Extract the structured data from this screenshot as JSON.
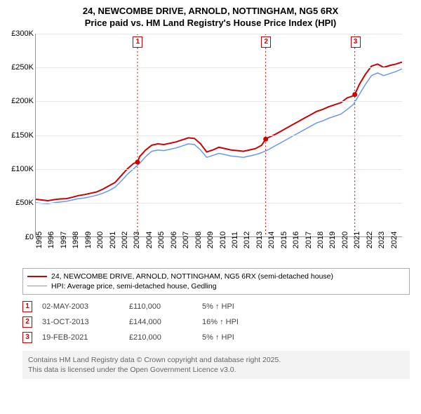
{
  "title": {
    "line1": "24, NEWCOMBE DRIVE, ARNOLD, NOTTINGHAM, NG5 6RX",
    "line2": "Price paid vs. HM Land Registry's House Price Index (HPI)"
  },
  "chart": {
    "type": "line",
    "background_color": "#ffffff",
    "grid_color": "#e8e8e8",
    "axis_color": "#999999",
    "tick_fontsize": 11,
    "y": {
      "min": 0,
      "max": 300000,
      "step": 50000,
      "labels": [
        "£0",
        "£50K",
        "£100K",
        "£150K",
        "£200K",
        "£250K",
        "£300K"
      ]
    },
    "x": {
      "min": 1995,
      "max": 2025,
      "step": 1,
      "labels": [
        "1995",
        "1996",
        "1997",
        "1998",
        "1999",
        "2000",
        "2001",
        "2002",
        "2003",
        "2004",
        "2005",
        "2006",
        "2007",
        "2008",
        "2009",
        "2010",
        "2011",
        "2012",
        "2013",
        "2014",
        "2015",
        "2016",
        "2017",
        "2018",
        "2019",
        "2020",
        "2021",
        "2022",
        "2023",
        "2024"
      ]
    },
    "series": [
      {
        "id": "price_paid",
        "label": "24, NEWCOMBE DRIVE, ARNOLD, NOTTINGHAM, NG5 6RX (semi-detached house)",
        "color": "#cc0000",
        "line_width": 2,
        "points": [
          [
            1995.0,
            55000
          ],
          [
            1995.5,
            54000
          ],
          [
            1996.0,
            53000
          ],
          [
            1996.5,
            54500
          ],
          [
            1997.0,
            55500
          ],
          [
            1997.5,
            56000
          ],
          [
            1998.0,
            58000
          ],
          [
            1998.5,
            60500
          ],
          [
            1999.0,
            62000
          ],
          [
            1999.5,
            64000
          ],
          [
            2000.0,
            66000
          ],
          [
            2000.5,
            70000
          ],
          [
            2001.0,
            75000
          ],
          [
            2001.5,
            80000
          ],
          [
            2002.0,
            90000
          ],
          [
            2002.5,
            100000
          ],
          [
            2003.0,
            108000
          ],
          [
            2003.33,
            110000
          ],
          [
            2003.5,
            118000
          ],
          [
            2004.0,
            128000
          ],
          [
            2004.5,
            135000
          ],
          [
            2005.0,
            137000
          ],
          [
            2005.5,
            136000
          ],
          [
            2006.0,
            138000
          ],
          [
            2006.5,
            140000
          ],
          [
            2007.0,
            143000
          ],
          [
            2007.5,
            146000
          ],
          [
            2008.0,
            145000
          ],
          [
            2008.5,
            137000
          ],
          [
            2009.0,
            125000
          ],
          [
            2009.5,
            128000
          ],
          [
            2010.0,
            132000
          ],
          [
            2010.5,
            130000
          ],
          [
            2011.0,
            128000
          ],
          [
            2011.5,
            127000
          ],
          [
            2012.0,
            126000
          ],
          [
            2012.5,
            128000
          ],
          [
            2013.0,
            130000
          ],
          [
            2013.5,
            135000
          ],
          [
            2013.83,
            144000
          ],
          [
            2014.0,
            146000
          ],
          [
            2014.5,
            150000
          ],
          [
            2015.0,
            155000
          ],
          [
            2015.5,
            160000
          ],
          [
            2016.0,
            165000
          ],
          [
            2016.5,
            170000
          ],
          [
            2017.0,
            175000
          ],
          [
            2017.5,
            180000
          ],
          [
            2018.0,
            185000
          ],
          [
            2018.5,
            188000
          ],
          [
            2019.0,
            192000
          ],
          [
            2019.5,
            195000
          ],
          [
            2020.0,
            198000
          ],
          [
            2020.5,
            205000
          ],
          [
            2021.0,
            208000
          ],
          [
            2021.13,
            210000
          ],
          [
            2021.5,
            225000
          ],
          [
            2022.0,
            240000
          ],
          [
            2022.5,
            252000
          ],
          [
            2023.0,
            255000
          ],
          [
            2023.5,
            250000
          ],
          [
            2024.0,
            253000
          ],
          [
            2024.5,
            255000
          ],
          [
            2025.0,
            258000
          ]
        ]
      },
      {
        "id": "hpi",
        "label": "HPI: Average price, semi-detached house, Gedling",
        "color": "#6699ee",
        "line_width": 1.5,
        "points": [
          [
            1995.0,
            50000
          ],
          [
            1995.5,
            49000
          ],
          [
            1996.0,
            48500
          ],
          [
            1996.5,
            50000
          ],
          [
            1997.0,
            51000
          ],
          [
            1997.5,
            52000
          ],
          [
            1998.0,
            54000
          ],
          [
            1998.5,
            56000
          ],
          [
            1999.0,
            57000
          ],
          [
            1999.5,
            59000
          ],
          [
            2000.0,
            61000
          ],
          [
            2000.5,
            64000
          ],
          [
            2001.0,
            68000
          ],
          [
            2001.5,
            73000
          ],
          [
            2002.0,
            82000
          ],
          [
            2002.5,
            92000
          ],
          [
            2003.0,
            100000
          ],
          [
            2003.5,
            108000
          ],
          [
            2004.0,
            118000
          ],
          [
            2004.5,
            126000
          ],
          [
            2005.0,
            128000
          ],
          [
            2005.5,
            127000
          ],
          [
            2006.0,
            129000
          ],
          [
            2006.5,
            131000
          ],
          [
            2007.0,
            134000
          ],
          [
            2007.5,
            137000
          ],
          [
            2008.0,
            136000
          ],
          [
            2008.5,
            128000
          ],
          [
            2009.0,
            117000
          ],
          [
            2009.5,
            120000
          ],
          [
            2010.0,
            123000
          ],
          [
            2010.5,
            121000
          ],
          [
            2011.0,
            119000
          ],
          [
            2011.5,
            118000
          ],
          [
            2012.0,
            117000
          ],
          [
            2012.5,
            119000
          ],
          [
            2013.0,
            121000
          ],
          [
            2013.5,
            124000
          ],
          [
            2014.0,
            128000
          ],
          [
            2014.5,
            133000
          ],
          [
            2015.0,
            138000
          ],
          [
            2015.5,
            143000
          ],
          [
            2016.0,
            148000
          ],
          [
            2016.5,
            153000
          ],
          [
            2017.0,
            158000
          ],
          [
            2017.5,
            163000
          ],
          [
            2018.0,
            168000
          ],
          [
            2018.5,
            171000
          ],
          [
            2019.0,
            175000
          ],
          [
            2019.5,
            178000
          ],
          [
            2020.0,
            181000
          ],
          [
            2020.5,
            188000
          ],
          [
            2021.0,
            195000
          ],
          [
            2021.5,
            210000
          ],
          [
            2022.0,
            225000
          ],
          [
            2022.5,
            238000
          ],
          [
            2023.0,
            242000
          ],
          [
            2023.5,
            238000
          ],
          [
            2024.0,
            241000
          ],
          [
            2024.5,
            244000
          ],
          [
            2025.0,
            248000
          ]
        ]
      }
    ],
    "markers": [
      {
        "n": "1",
        "year": 2003.33,
        "value": 110000,
        "color": "#cc0000"
      },
      {
        "n": "2",
        "year": 2013.83,
        "value": 144000,
        "color": "#cc0000"
      },
      {
        "n": "3",
        "year": 2021.13,
        "value": 210000,
        "color": "#cc0000"
      }
    ]
  },
  "legend": {
    "items": [
      {
        "color": "#cc0000",
        "width": 2,
        "label_ref": "chart.series.0.label"
      },
      {
        "color": "#6699ee",
        "width": 1.5,
        "label_ref": "chart.series.1.label"
      }
    ]
  },
  "notes": [
    {
      "n": "1",
      "color": "#cc0000",
      "date": "02-MAY-2003",
      "price": "£110,000",
      "pct": "5% ↑ HPI"
    },
    {
      "n": "2",
      "color": "#cc0000",
      "date": "31-OCT-2013",
      "price": "£144,000",
      "pct": "16% ↑ HPI"
    },
    {
      "n": "3",
      "color": "#cc0000",
      "date": "19-FEB-2021",
      "price": "£210,000",
      "pct": "5% ↑ HPI"
    }
  ],
  "footer": {
    "line1": "Contains HM Land Registry data © Crown copyright and database right 2025.",
    "line2": "This data is licensed under the Open Government Licence v3.0."
  }
}
